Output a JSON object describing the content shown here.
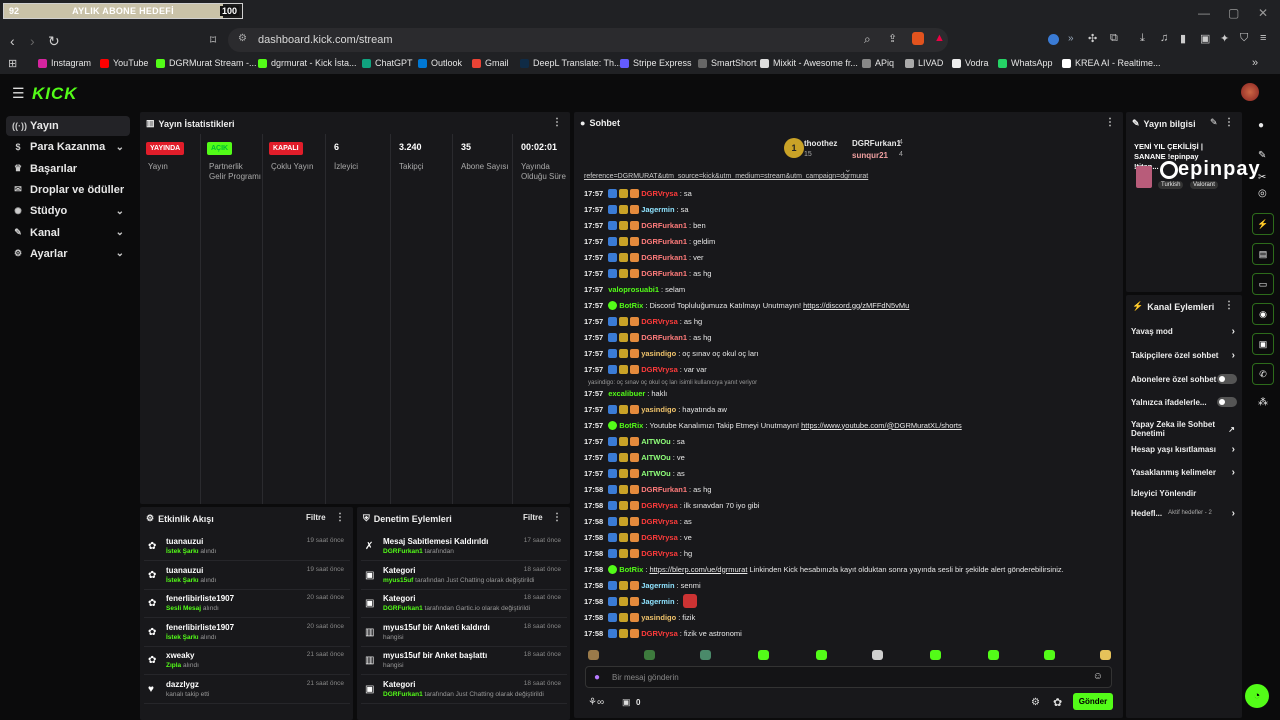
{
  "goal": {
    "left_value": "92",
    "label": "AYLIK ABONE HEDEFİ",
    "target": "100",
    "progress": 0.92
  },
  "browser": {
    "url": "dashboard.kick.com/stream",
    "bookmarks": [
      "Instagram",
      "YouTube",
      "DGRMurat Stream -...",
      "dgrmurat - Kick İsta...",
      "ChatGPT",
      "Outlook",
      "Gmail",
      "DeepL Translate: Th...",
      "Stripe Express",
      "SmartShort",
      "Mixkit - Awesome fr...",
      "APiq",
      "LIVAD",
      "Vodra",
      "WhatsApp",
      "KREA AI - Realtime..."
    ]
  },
  "app": {
    "logo": "KICK"
  },
  "sidebar": {
    "items": [
      {
        "label": "Yayın",
        "icon": "broadcast-icon"
      },
      {
        "label": "Para Kazanma",
        "icon": "dollar-icon"
      },
      {
        "label": "Başarılar",
        "icon": "trophy-icon"
      },
      {
        "label": "Droplar ve ödüller",
        "icon": "gift-icon"
      },
      {
        "label": "Stüdyo",
        "icon": "studio-icon"
      },
      {
        "label": "Kanal",
        "icon": "channel-icon"
      },
      {
        "label": "Ayarlar",
        "icon": "gear-icon"
      }
    ]
  },
  "stats": {
    "title": "Yayın İstatistikleri",
    "items": [
      {
        "badge": "YAYINDA",
        "label": "Yayın"
      },
      {
        "badge": "AÇIK",
        "label": "Partnerlik Gelir Programı"
      },
      {
        "badge": "KAPALI",
        "label": "Çoklu Yayın"
      },
      {
        "value": "6",
        "label": "İzleyici"
      },
      {
        "value": "3.240",
        "label": "Takipçi"
      },
      {
        "value": "35",
        "label": "Abone Sayısı"
      },
      {
        "value": "00:02:01",
        "label": "Yayında Olduğu Süre"
      }
    ]
  },
  "activity": {
    "title": "Etkinlik Akışı",
    "filter": "Filtre",
    "items": [
      {
        "name": "tuanauzui",
        "kind": "İstek Şarkı",
        "suffix": "alındı",
        "time": "19 saat önce"
      },
      {
        "name": "tuanauzui",
        "kind": "İstek Şarkı",
        "suffix": "alındı",
        "time": "19 saat önce"
      },
      {
        "name": "fenerlibirliste1907",
        "kind": "Sesli Mesaj",
        "suffix": "alındı",
        "time": "20 saat önce"
      },
      {
        "name": "fenerlibirliste1907",
        "kind": "İstek Şarkı",
        "suffix": "alındı",
        "time": "20 saat önce"
      },
      {
        "name": "xweaky",
        "kind": "Zıpla",
        "suffix": "alındı",
        "time": "21 saat önce"
      },
      {
        "name": "dazzlygz",
        "kind": "",
        "suffix": "kanalı takip etti",
        "time": "21 saat önce"
      }
    ]
  },
  "moderation": {
    "title": "Denetim Eylemleri",
    "filter": "Filtre",
    "items": [
      {
        "title": "Mesaj Sabitlemesi Kaldırıldı",
        "sub_user": "DGRFurkan1",
        "sub_text": "tarafından",
        "time": "17 saat önce"
      },
      {
        "title": "Kategori",
        "sub_user": "myus15uf",
        "sub_text": "tarafından Just Chatting olarak değiştirildi",
        "time": "18 saat önce"
      },
      {
        "title": "Kategori",
        "sub_user": "DGRFurkan1",
        "sub_text": "tarafından Gartic.io olarak değiştirildi",
        "time": "18 saat önce"
      },
      {
        "title": "myus15uf bir Anketi kaldırdı",
        "sub_user": "",
        "sub_text": "hangisi",
        "time": "18 saat önce"
      },
      {
        "title": "myus15uf bir Anket başlattı",
        "sub_user": "",
        "sub_text": "hangisi",
        "time": "18 saat önce"
      },
      {
        "title": "Kategori",
        "sub_user": "DGRFurkan1",
        "sub_text": "tarafından Just Chatting olarak değiştirildi",
        "time": "18 saat önce"
      }
    ]
  },
  "chat": {
    "title": "Sohbet",
    "top": [
      {
        "name": "thoothez",
        "count": "15"
      },
      {
        "name": "DGRFurkan1",
        "count": "4"
      },
      {
        "name": "sunqur21",
        "count": "4"
      }
    ],
    "messages": [
      {
        "time": "17:57",
        "user": "DGRVrysa",
        "color": "#ff3b3b",
        "text": "sa"
      },
      {
        "time": "17:57",
        "user": "Jagermin",
        "color": "#8fe3ff",
        "text": "sa"
      },
      {
        "time": "17:57",
        "user": "DGRFurkan1",
        "color": "#ff7b7b",
        "text": "ben"
      },
      {
        "time": "17:57",
        "user": "DGRFurkan1",
        "color": "#ff7b7b",
        "text": "geldim"
      },
      {
        "time": "17:57",
        "user": "DGRFurkan1",
        "color": "#ff7b7b",
        "text": "ver"
      },
      {
        "time": "17:57",
        "user": "DGRFurkan1",
        "color": "#ff7b7b",
        "text": "as hg"
      },
      {
        "time": "17:57",
        "user": "valoprosuabi1",
        "color": "#53fc18",
        "text": "selam"
      },
      {
        "time": "17:57",
        "user": "BotRix",
        "color": "#53fc18",
        "text": "Discord Topluluğumuza Katılmayı Unutmayın!",
        "link": "https://discord.gg/zMFFdN5vMu"
      },
      {
        "time": "17:57",
        "user": "DGRVrysa",
        "color": "#ff3b3b",
        "text": "as hg"
      },
      {
        "time": "17:57",
        "user": "DGRFurkan1",
        "color": "#ff7b7b",
        "text": "as hg"
      },
      {
        "time": "17:57",
        "user": "yasindigo",
        "color": "#f0c36b",
        "text": "oç sınav oç okul oç ları"
      },
      {
        "time": "17:57",
        "user": "DGRVrysa",
        "color": "#ff3b3b",
        "text": "var var"
      },
      {
        "time": "17:57",
        "user": "excalibuer",
        "color": "#53fc18",
        "text": "haklı"
      },
      {
        "time": "17:57",
        "user": "yasindigo",
        "color": "#f0c36b",
        "text": "hayatında aw"
      },
      {
        "time": "17:57",
        "user": "BotRix",
        "color": "#53fc18",
        "text": "Youtube Kanalımızı Takip Etmeyi Unutmayın!",
        "link": "https://www.youtube.com/@DGRMuratXL/shorts"
      },
      {
        "time": "17:57",
        "user": "AITWOu",
        "color": "#8fff7a",
        "text": "sa"
      },
      {
        "time": "17:57",
        "user": "AITWOu",
        "color": "#8fff7a",
        "text": "ve"
      },
      {
        "time": "17:57",
        "user": "AITWOu",
        "color": "#8fff7a",
        "text": "as"
      },
      {
        "time": "17:58",
        "user": "DGRFurkan1",
        "color": "#ff7b7b",
        "text": "as hg"
      },
      {
        "time": "17:58",
        "user": "DGRVrysa",
        "color": "#ff3b3b",
        "text": "ilk sınavdan 70 iyo gibi"
      },
      {
        "time": "17:58",
        "user": "DGRVrysa",
        "color": "#ff3b3b",
        "text": "as"
      },
      {
        "time": "17:58",
        "user": "DGRVrysa",
        "color": "#ff3b3b",
        "text": "ve"
      },
      {
        "time": "17:58",
        "user": "DGRVrysa",
        "color": "#ff3b3b",
        "text": "hg"
      },
      {
        "time": "17:58",
        "user": "BotRix",
        "color": "#53fc18",
        "text": "Linkinden Kick hesabınızla kayıt olduktan sonra yayında sesli bir şekilde alert gönderebilirsiniz.",
        "link": "https://blerp.com/ue/dgrmurat"
      },
      {
        "time": "17:58",
        "user": "Jagermin",
        "color": "#8fe3ff",
        "text": "senmi"
      },
      {
        "time": "17:58",
        "user": "Jagermin",
        "color": "#8fe3ff",
        "text": ""
      },
      {
        "time": "17:58",
        "user": "yasindigo",
        "color": "#f0c36b",
        "text": "fizik"
      },
      {
        "time": "17:58",
        "user": "DGRVrysa",
        "color": "#ff3b3b",
        "text": "fizik ve astronomi"
      }
    ],
    "reply_note": "yasindigo: oç sınav oç okul oç ları isimli kullanıcıya yanıt veriyor",
    "input_placeholder": "Bir mesaj gönderin",
    "send": "Gönder",
    "viewers": "0",
    "top_link": "reference=DGRMURAT&utm_source=kick&utm_medium=stream&utm_campaign=dgrmurat"
  },
  "stream_info": {
    "title": "Yayın bilgisi",
    "stream_title": "YENİ YIL ÇEKİLİŞİ | SANANE !epinpay !titan...",
    "tags": [
      "Turkish",
      "Valorant"
    ],
    "watermark": "epinpay"
  },
  "channel_actions": {
    "title": "Kanal Eylemleri",
    "items": [
      {
        "label": "Yavaş mod",
        "type": "arrow"
      },
      {
        "label": "Takipçilere özel sohbet",
        "type": "arrow"
      },
      {
        "label": "Abonelere özel sohbet",
        "type": "toggle"
      },
      {
        "label": "Yalnızca ifadelerle...",
        "type": "toggle"
      },
      {
        "label": "Yapay Zeka ile Sohbet Denetimi",
        "type": "external"
      },
      {
        "label": "Hesap yaşı kısıtlaması",
        "type": "arrow"
      },
      {
        "label": "Yasaklanmış kelimeler",
        "type": "arrow"
      },
      {
        "label": "İzleyici Yönlendir",
        "type": "none"
      },
      {
        "label": "Hedefl...",
        "type": "arrow",
        "note": "Aktif hedefler - 2"
      }
    ]
  },
  "colors": {
    "brand": "#53fc18",
    "live": "#e11d2a",
    "panel": "#18181b"
  }
}
